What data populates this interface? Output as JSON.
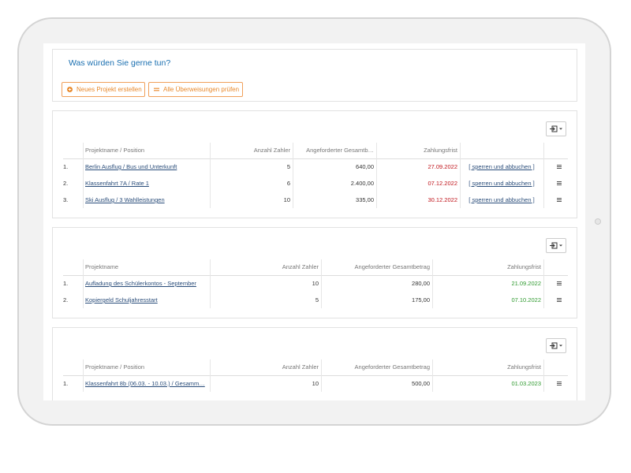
{
  "header": {
    "title": "Was würden Sie gerne tun?",
    "buttons": [
      "Neues Projekt erstellen",
      "Alle Überweisungen prüfen"
    ]
  },
  "tables": [
    {
      "columns": [
        "Projektname / Position",
        "Anzahl Zahler",
        "Angeforderter Gesamtb…",
        "Zahlungsfrist"
      ],
      "rows": [
        [
          "1.",
          "Berlin Ausflug / Bus und Unterkunft",
          5,
          "640,00",
          "27.09.2022",
          "[ sperren und abbuchen ]"
        ],
        [
          "2.",
          "Klassenfahrt 7A / Rate 1",
          6,
          "2.400,00",
          "07.12.2022",
          "[ sperren und abbuchen ]"
        ],
        [
          "3.",
          "Ski Ausflug / 3 Wahlleistungen",
          10,
          "335,00",
          "30.12.2022",
          "[ sperren und abbuchen ]"
        ]
      ]
    },
    {
      "columns": [
        "Projektname",
        "Anzahl Zahler",
        "Angeforderter Gesamtbetrag",
        "Zahlungsfrist"
      ],
      "rows": [
        [
          "1.",
          "Aufladung des Schülerkontos - September",
          10,
          "280,00",
          "21.09.2022"
        ],
        [
          "2.",
          "Kopiergeld Schuljahresstart",
          5,
          "175,00",
          "07.10.2022"
        ]
      ]
    },
    {
      "columns": [
        "Projektname / Position",
        "Anzahl Zahler",
        "Angeforderter Gesamtbetrag",
        "Zahlungsfrist"
      ],
      "rows": [
        [
          "1.",
          "Klassenfahrt 8b (06.03. - 10.03.) / Gesamm…",
          10,
          "500,00",
          "01.03.2023"
        ]
      ]
    }
  ]
}
